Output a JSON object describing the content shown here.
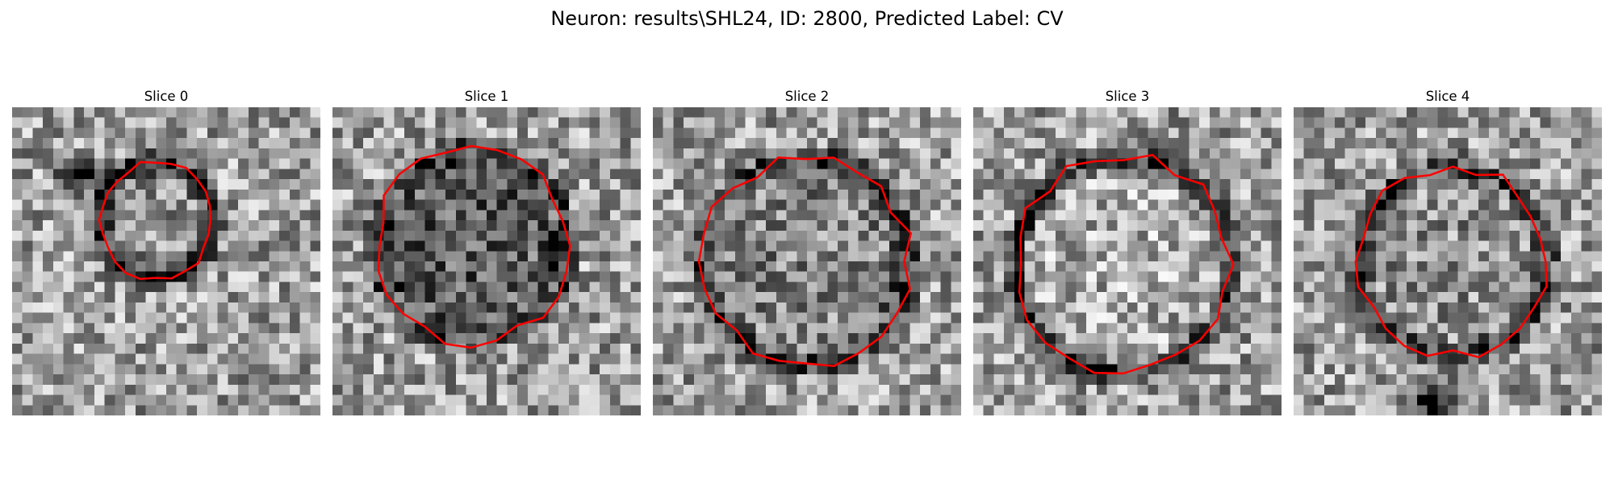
{
  "figure": {
    "title": "Neuron: results\\SHL24, ID: 2800, Predicted Label: CV",
    "contour_color": "#ff0000"
  },
  "panels": [
    {
      "title": "Slice 0"
    },
    {
      "title": "Slice 1"
    },
    {
      "title": "Slice 2"
    },
    {
      "title": "Slice 3"
    },
    {
      "title": "Slice 4"
    }
  ]
}
